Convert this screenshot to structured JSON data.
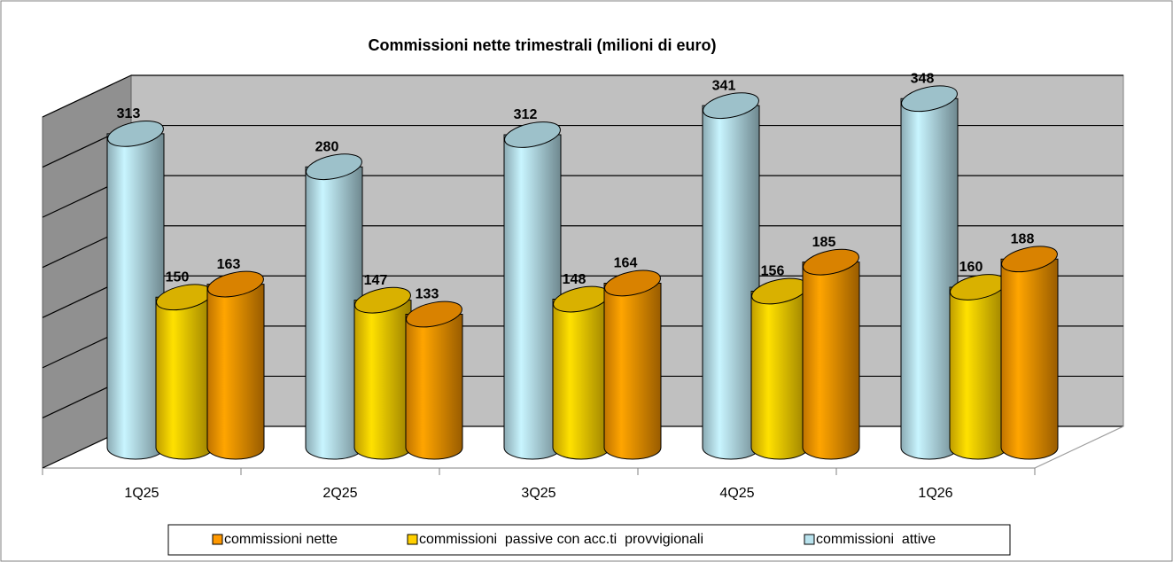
{
  "chart_data": {
    "type": "bar3d",
    "title": "Commissioni nette trimestrali (milioni di euro)",
    "categories": [
      "1Q25",
      "2Q25",
      "3Q25",
      "4Q25",
      "1Q26"
    ],
    "series": [
      {
        "name": "commissioni nette",
        "color": "#ff9900",
        "values": [
          163,
          133,
          164,
          185,
          188
        ]
      },
      {
        "name": "commissioni  passive con acc.ti  provvigionali",
        "color": "#ffd000",
        "values": [
          150,
          147,
          148,
          156,
          160
        ]
      },
      {
        "name": "commissioni  attive",
        "color": "#b9e3ee",
        "values": [
          313,
          280,
          312,
          341,
          348
        ]
      }
    ],
    "ylim": [
      0,
      350
    ],
    "yticks": [
      0,
      50,
      100,
      150,
      200,
      250,
      300,
      350
    ],
    "grid": true,
    "legend": "bottom"
  }
}
